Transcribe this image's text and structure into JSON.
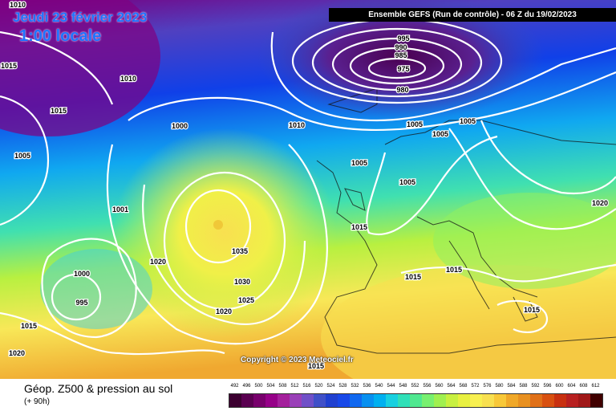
{
  "header": {
    "date": "Jeudi 23 février 2023",
    "time": "1:00 locale",
    "model": "Ensemble GEFS  (Run de contrôle)  -  06 Z du 19/02/2023"
  },
  "map": {
    "copyright": "Copyright © 2023 Meteociel.fr",
    "low_center_values": [
      "995",
      "990",
      "985",
      "980",
      "975"
    ],
    "isobar_labels": [
      "1010",
      "1015",
      "1005",
      "1010",
      "1015",
      "1005",
      "1000",
      "1010",
      "1005",
      "1005",
      "1005",
      "1005",
      "1020",
      "1015",
      "1015",
      "1015",
      "1015",
      "1001",
      "1020",
      "1035",
      "1030",
      "1025",
      "1000",
      "995",
      "1020",
      "1015",
      "1020",
      "1015"
    ]
  },
  "legend": {
    "title": "Géop. Z500 & pression au sol",
    "subtitle": "(+ 90h)",
    "scale_values": [
      "492",
      "496",
      "500",
      "504",
      "508",
      "512",
      "516",
      "520",
      "524",
      "528",
      "532",
      "536",
      "540",
      "544",
      "548",
      "552",
      "556",
      "560",
      "564",
      "568",
      "572",
      "576",
      "580",
      "584",
      "588",
      "592",
      "596",
      "600",
      "604",
      "608",
      "612"
    ],
    "scale_colors": [
      "#3c0030",
      "#5a0050",
      "#78006c",
      "#960088",
      "#a4209c",
      "#9a40b8",
      "#7050c8",
      "#4050c8",
      "#2040d0",
      "#1848e8",
      "#1068f0",
      "#0890f0",
      "#00b0f0",
      "#18d0e0",
      "#30e0b8",
      "#50e890",
      "#78f070",
      "#a0f050",
      "#c8f040",
      "#e8f040",
      "#f8f050",
      "#f8e050",
      "#f8c838",
      "#f0a828",
      "#e89020",
      "#e07018",
      "#d85010",
      "#c83010",
      "#b82020",
      "#a01818",
      "#400000"
    ]
  },
  "colors": {
    "header_text": "#1e73ff",
    "banner_bg": "#000000"
  }
}
